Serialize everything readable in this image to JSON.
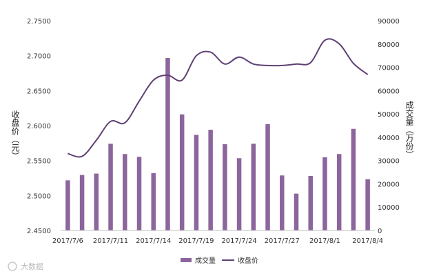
{
  "chart_data": {
    "type": "bar",
    "title": "",
    "x": [
      "2017/7/6",
      "2017/7/7",
      "2017/7/10",
      "2017/7/11",
      "2017/7/12",
      "2017/7/13",
      "2017/7/14",
      "2017/7/17",
      "2017/7/18",
      "2017/7/19",
      "2017/7/20",
      "2017/7/21",
      "2017/7/24",
      "2017/7/25",
      "2017/7/26",
      "2017/7/27",
      "2017/7/28",
      "2017/7/31",
      "2017/8/1",
      "2017/8/2",
      "2017/8/3",
      "2017/8/4"
    ],
    "x_tick_labels": [
      "2017/7/6",
      "2017/7/11",
      "2017/7/14",
      "2017/7/19",
      "2017/7/24",
      "2017/7/27",
      "2017/8/1",
      "2017/8/4"
    ],
    "x_tick_indices": [
      0,
      3,
      6,
      9,
      12,
      15,
      18,
      21
    ],
    "series": [
      {
        "name": "成交量",
        "type": "bar",
        "axis": "right",
        "color": "#8c659c",
        "values": [
          21500,
          23800,
          24400,
          37200,
          32800,
          31600,
          24600,
          74000,
          49800,
          41000,
          43200,
          37000,
          31000,
          37200,
          45600,
          23600,
          15800,
          23400,
          31400,
          32800,
          43600,
          22000
        ]
      },
      {
        "name": "收盘价",
        "type": "line",
        "axis": "left",
        "color": "#5e3f73",
        "values": [
          2.56,
          2.556,
          2.579,
          2.606,
          2.604,
          2.635,
          2.665,
          2.672,
          2.665,
          2.7,
          2.705,
          2.688,
          2.698,
          2.688,
          2.686,
          2.686,
          2.688,
          2.69,
          2.722,
          2.717,
          2.689,
          2.673
        ]
      }
    ],
    "y_left": {
      "label": "收盘价（元）",
      "min": 2.45,
      "max": 2.75,
      "ticks": [
        "2.4500",
        "2.5000",
        "2.5500",
        "2.6000",
        "2.6500",
        "2.7000",
        "2.7500"
      ]
    },
    "y_right": {
      "label": "成交量（万份）",
      "min": 0,
      "max": 90000,
      "ticks": [
        "0",
        "10000",
        "20000",
        "30000",
        "40000",
        "50000",
        "60000",
        "70000",
        "80000",
        "90000"
      ]
    },
    "grid": false,
    "legend_position": "bottom"
  },
  "legend": {
    "bar_label": "成交量",
    "line_label": "收盘价"
  },
  "watermark": "大数据"
}
